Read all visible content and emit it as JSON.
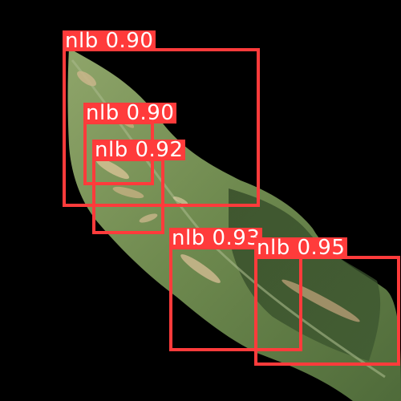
{
  "detections": [
    {
      "id": "d1",
      "class_label": "nlb",
      "score": "0.90"
    },
    {
      "id": "d2",
      "class_label": "nlb",
      "score": "0.90"
    },
    {
      "id": "d3",
      "class_label": "nlb",
      "score": "0.92"
    },
    {
      "id": "d4",
      "class_label": "nlb",
      "score": "0.93"
    },
    {
      "id": "d5",
      "class_label": "nlb",
      "score": "0.95"
    }
  ],
  "colors": {
    "background": "#000000",
    "box": "#ff3b3b",
    "label_text": "#ffffff",
    "leaf": "#6f8a4f",
    "leaf_dark": "#3f5a2e",
    "lesion": "#c9b58a"
  }
}
